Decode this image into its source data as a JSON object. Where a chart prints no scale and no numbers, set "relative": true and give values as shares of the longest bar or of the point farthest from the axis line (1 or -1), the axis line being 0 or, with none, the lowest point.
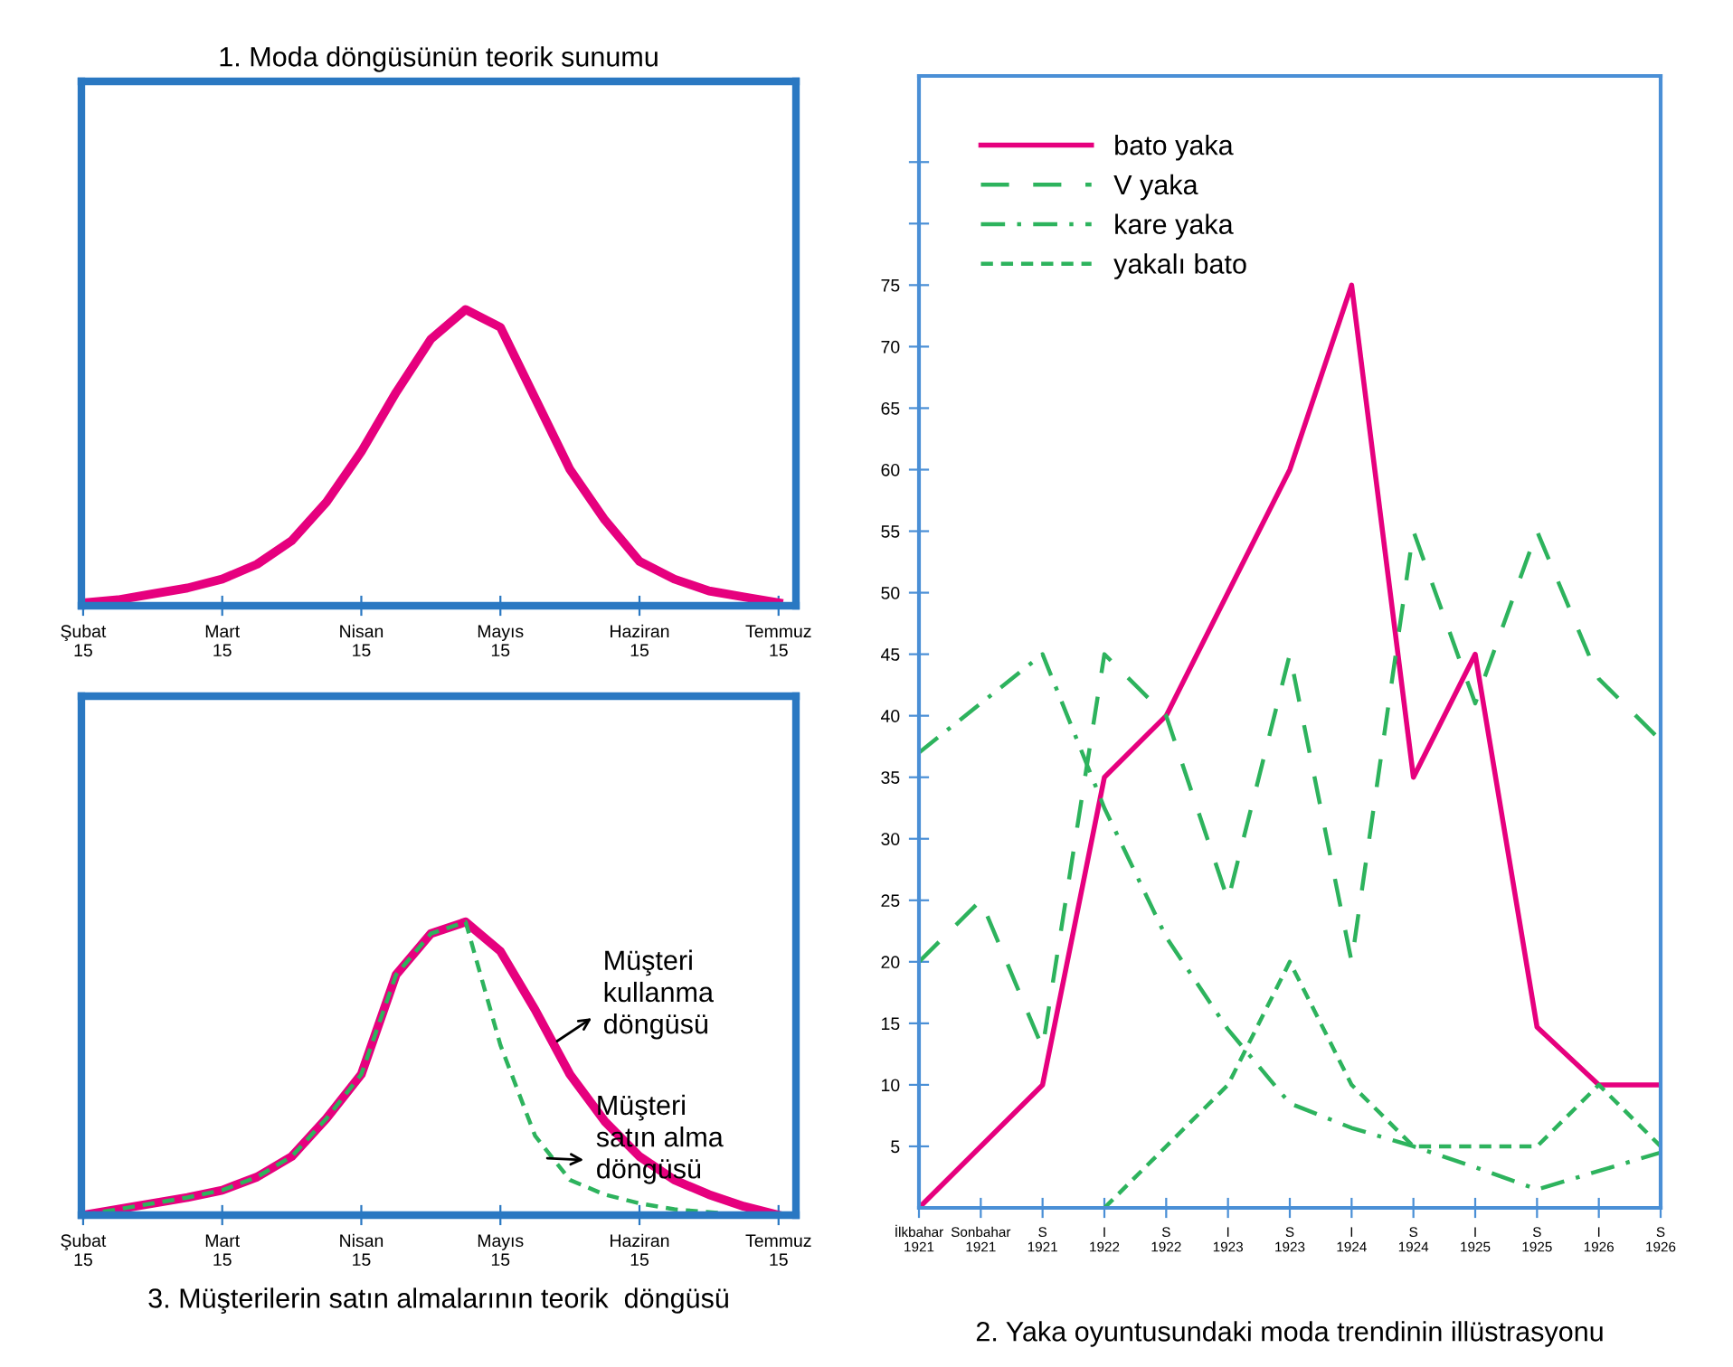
{
  "chart_data": [
    {
      "type": "line",
      "relative": true,
      "title": "1. Moda döngüsünün teorik sunumu",
      "tick_labels": "x",
      "categories": [
        "Şubat\n15",
        null,
        null,
        null,
        "Mart\n15",
        null,
        null,
        null,
        "Nisan\n15",
        null,
        null,
        null,
        "Mayıs\n15",
        null,
        null,
        null,
        "Haziran\n15",
        null,
        null,
        null,
        "Temmuz\n15"
      ],
      "series": [
        {
          "color": "#e6007e",
          "line_style": "solid",
          "values": [
            0.01,
            0.02,
            0.04,
            0.06,
            0.09,
            0.14,
            0.22,
            0.35,
            0.52,
            0.72,
            0.9,
            1.0,
            0.94,
            0.7,
            0.46,
            0.29,
            0.15,
            0.09,
            0.05,
            0.03,
            0.01
          ]
        }
      ]
    },
    {
      "type": "line",
      "title": "2. Yaka oyuntusundaki moda trendinin illüstrasyonu",
      "ylim": [
        0,
        92
      ],
      "legend": "top left",
      "yticks": [
        5,
        10,
        15,
        20,
        25,
        30,
        35,
        40,
        45,
        50,
        55,
        60,
        65,
        70,
        75,
        {
          "value": 80,
          "label": null
        },
        {
          "value": 85,
          "label": null
        }
      ],
      "categories": [
        "İlkbahar\n1921",
        "Sonbahar\n1921",
        "S\n1921",
        "I\n1922",
        "S\n1922",
        "I\n1923",
        "S\n1923",
        "I\n1924",
        "S\n1924",
        "I\n1925",
        "S\n1925",
        "I\n1926",
        "S\n1926"
      ],
      "series": [
        {
          "name": "bato yaka",
          "color": "#e6007e",
          "line_style": "solid",
          "values": [
            0,
            5,
            10,
            35,
            40,
            50,
            60,
            75,
            35,
            45,
            14.7,
            10,
            10
          ]
        },
        {
          "name": "V yaka",
          "color": "#2db35d",
          "line_style": "dashed",
          "values": [
            20,
            25,
            13,
            45,
            40,
            25,
            45,
            20,
            55,
            41,
            55,
            43,
            38
          ]
        },
        {
          "name": "kare yaka",
          "color": "#2db35d",
          "line_style": "dashdot",
          "values": [
            37,
            41,
            45,
            32.5,
            22,
            14.5,
            8.5,
            6.5,
            5,
            3.3,
            1.5,
            3,
            4.5
          ]
        },
        {
          "name": "yakalı bato",
          "color": "#2db35d",
          "line_style": "dotted",
          "values": [
            null,
            null,
            null,
            0,
            5,
            10,
            20,
            10,
            5,
            5,
            5,
            10,
            5
          ]
        }
      ]
    },
    {
      "type": "line",
      "relative": true,
      "title": "3. Müşterilerin satın almalarının teorik  döngüsü",
      "tick_labels": "x",
      "categories": [
        "Şubat\n15",
        null,
        null,
        null,
        "Mart\n15",
        null,
        null,
        null,
        "Nisan\n15",
        null,
        null,
        null,
        "Mayıs\n15",
        null,
        null,
        null,
        "Haziran\n15",
        null,
        null,
        null,
        "Temmuz\n15"
      ],
      "series": [
        {
          "color": "#e6007e",
          "line_style": "solid",
          "values": [
            0,
            0.02,
            0.04,
            0.06,
            0.085,
            0.13,
            0.2,
            0.33,
            0.48,
            0.82,
            0.96,
            1.0,
            0.9,
            0.7,
            0.48,
            0.32,
            0.2,
            0.12,
            0.07,
            0.03,
            0
          ]
        },
        {
          "color": "#2db35d",
          "line_style": "dotted",
          "values": [
            0,
            0.02,
            0.04,
            0.06,
            0.085,
            0.13,
            0.2,
            0.33,
            0.48,
            0.82,
            0.96,
            1.0,
            0.58,
            0.27,
            0.12,
            0.07,
            0.04,
            0.02,
            0.01,
            0,
            0
          ]
        }
      ],
      "annotations": [
        "Müşteri\nkullanma\ndöngüsü",
        "Müşteri\nsatın alma\ndöngüsü"
      ]
    }
  ]
}
